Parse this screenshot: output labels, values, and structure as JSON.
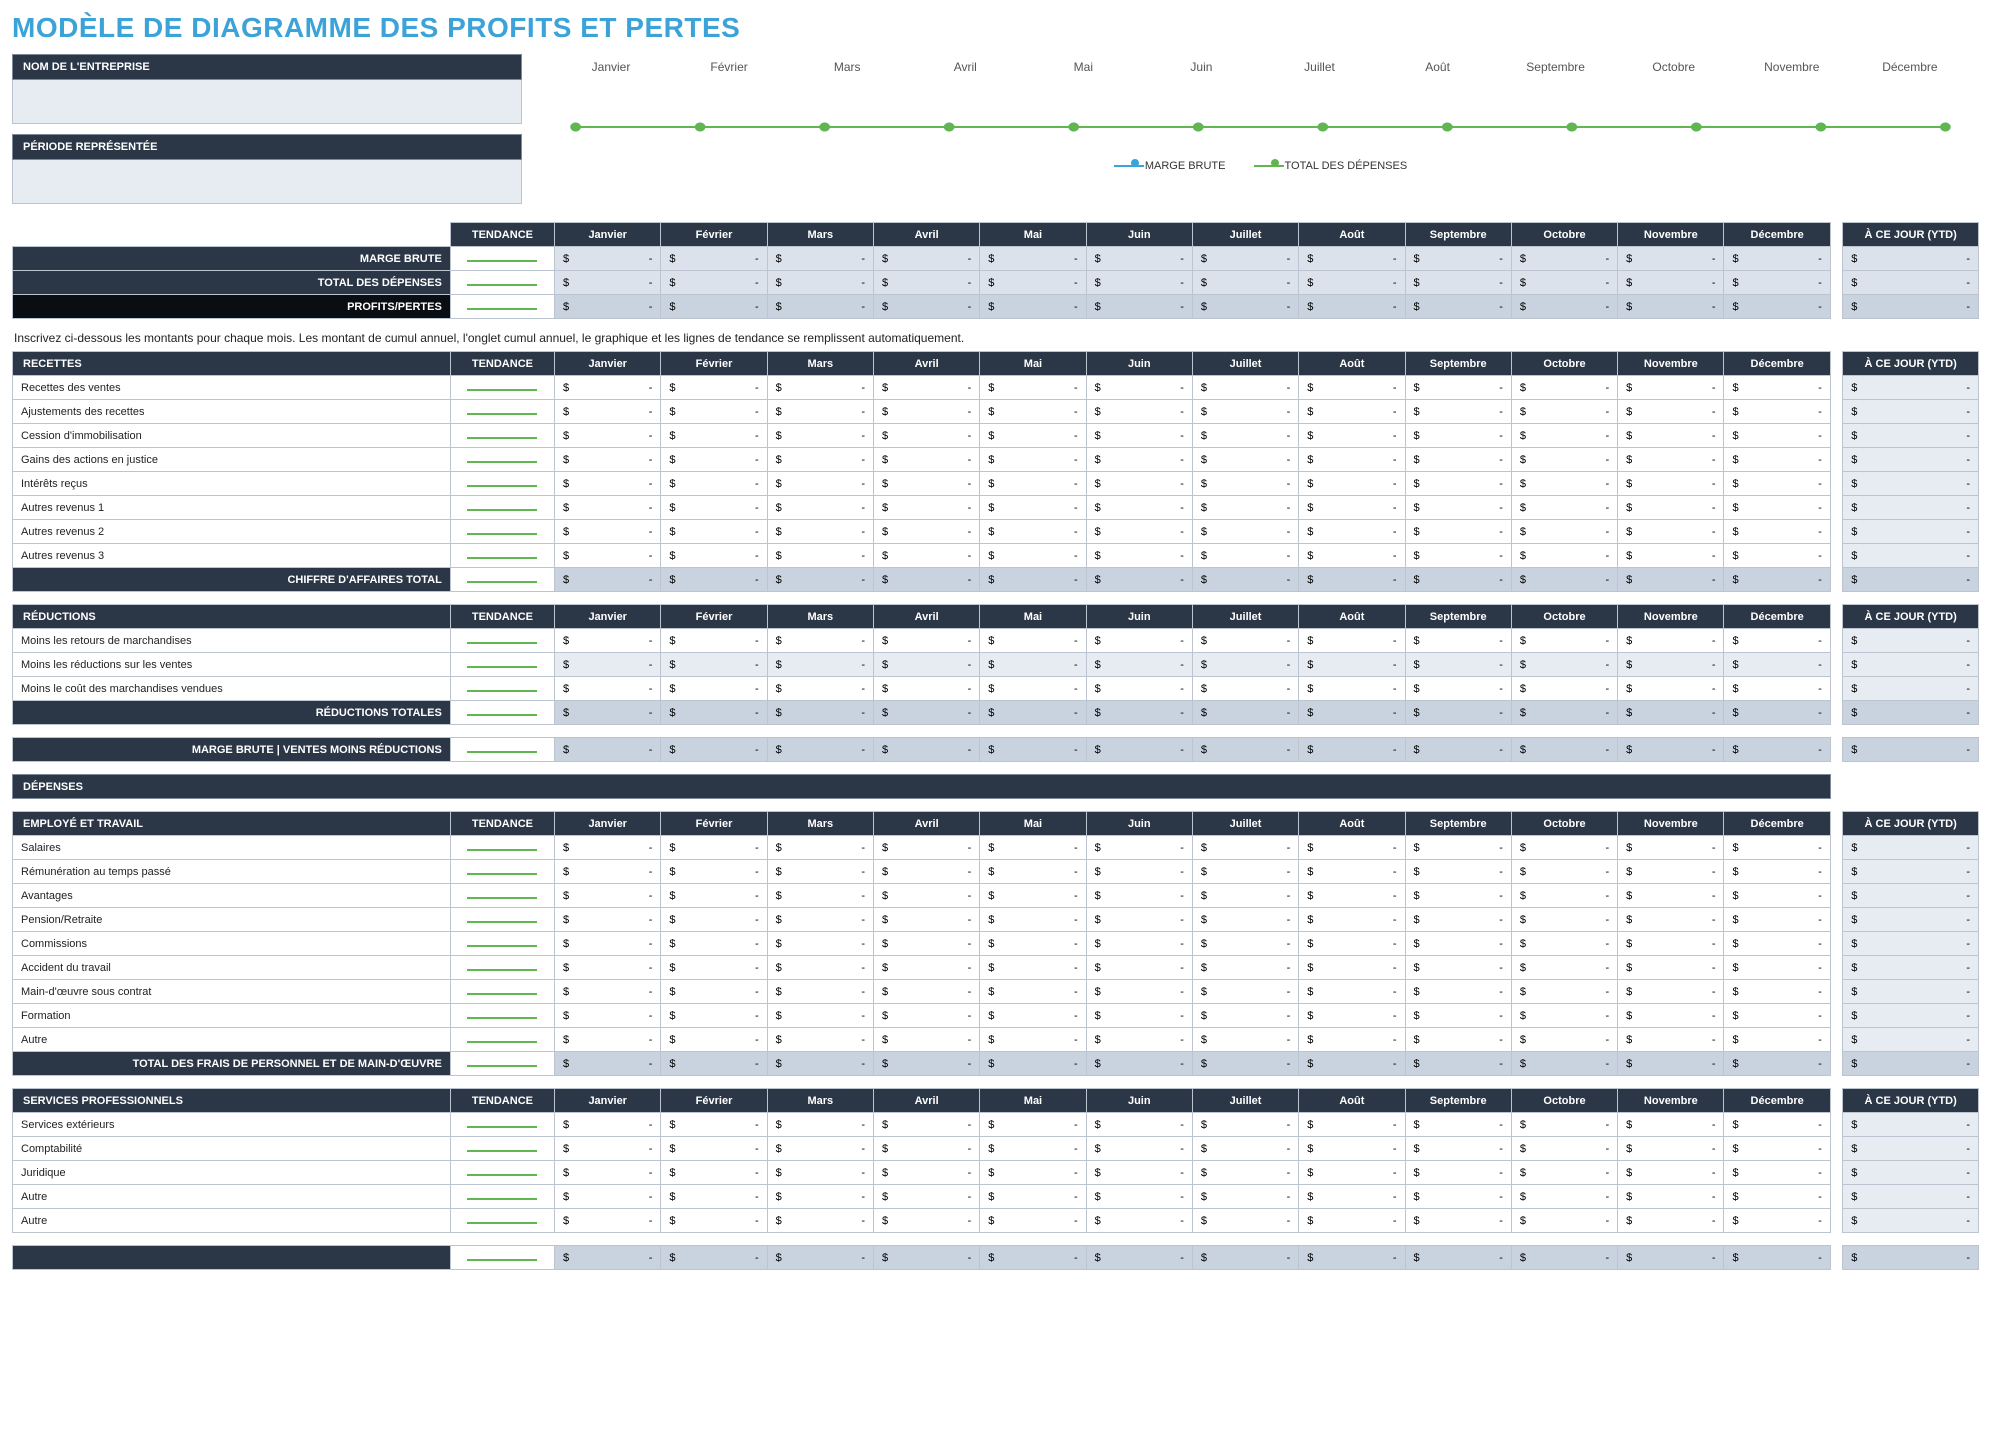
{
  "title": "MODÈLE DE DIAGRAMME DES PROFITS ET PERTES",
  "colors": {
    "title": "#3ba3d8",
    "header_dark": "#2b3646",
    "header_black": "#0a0d12",
    "row_alt": "#dbe2ec",
    "row_grey": "#e7ecf3",
    "row_soft": "#c9d3e0",
    "border": "#bcc4d0",
    "spark": "#61b64f",
    "series_blue": "#3ba3d8",
    "series_green": "#61b64f"
  },
  "meta": {
    "company_label": "NOM DE L'ENTREPRISE",
    "company_value": "",
    "period_label": "PÉRIODE REPRÉSENTÉE",
    "period_value": ""
  },
  "months": [
    "Janvier",
    "Février",
    "Mars",
    "Avril",
    "Mai",
    "Juin",
    "Juillet",
    "Août",
    "Septembre",
    "Octobre",
    "Novembre",
    "Décembre"
  ],
  "headers": {
    "tendance": "TENDANCE",
    "ytd": "À CE JOUR (YTD)"
  },
  "chart": {
    "type": "line",
    "series": [
      {
        "name": "MARGE BRUTE",
        "color": "#3ba3d8",
        "values": [
          0,
          0,
          0,
          0,
          0,
          0,
          0,
          0,
          0,
          0,
          0,
          0
        ]
      },
      {
        "name": "TOTAL DES DÉPENSES",
        "color": "#61b64f",
        "values": [
          0,
          0,
          0,
          0,
          0,
          0,
          0,
          0,
          0,
          0,
          0,
          0
        ]
      }
    ],
    "ylim": [
      0,
      1
    ],
    "marker": "circle",
    "marker_size": 8,
    "line_width": 2,
    "background": "#ffffff"
  },
  "summary": {
    "rows": [
      {
        "label": "MARGE BRUTE",
        "style": "row-label-dark",
        "cell": "cell-alt"
      },
      {
        "label": "TOTAL DES DÉPENSES",
        "style": "row-label-dark",
        "cell": "cell-alt"
      },
      {
        "label": "PROFITS/PERTES",
        "style": "hdr-black",
        "cell": "cell-soft"
      }
    ]
  },
  "instruction": "Inscrivez ci-dessous les montants pour chaque mois. Les montant de cumul annuel, l'onglet cumul annuel, le graphique et les lignes de tendance se remplissent automatiquement.",
  "sections": [
    {
      "title": "RECETTES",
      "rows": [
        "Recettes des ventes",
        "Ajustements des recettes",
        "Cession d'immobilisation",
        "Gains des actions en justice",
        "Intérêts reçus",
        "Autres revenus 1",
        "Autres revenus 2",
        "Autres revenus 3"
      ],
      "total_label": "CHIFFRE D'AFFAIRES TOTAL"
    },
    {
      "title": "RÉDUCTIONS",
      "rows": [
        "Moins les retours de marchandises",
        "Moins les réductions sur les ventes",
        "Moins le coût des marchandises vendues"
      ],
      "total_label": "RÉDUCTIONS TOTALES"
    }
  ],
  "marge_row": {
    "label": "MARGE BRUTE | VENTES MOINS RÉDUCTIONS"
  },
  "depenses_header": "DÉPENSES",
  "depenses_sections": [
    {
      "title": "EMPLOYÉ ET TRAVAIL",
      "rows": [
        "Salaires",
        "Rémunération au temps passé",
        "Avantages",
        "Pension/Retraite",
        "Commissions",
        "Accident du travail",
        "Main-d'œuvre sous contrat",
        "Formation",
        "Autre"
      ],
      "total_label": "TOTAL DES FRAIS DE PERSONNEL ET DE MAIN-D'ŒUVRE"
    },
    {
      "title": "SERVICES PROFESSIONNELS",
      "rows": [
        "Services extérieurs",
        "Comptabilité",
        "Juridique",
        "Autre",
        "Autre"
      ],
      "total_label": ""
    }
  ],
  "currency": "$",
  "empty_value": "-"
}
